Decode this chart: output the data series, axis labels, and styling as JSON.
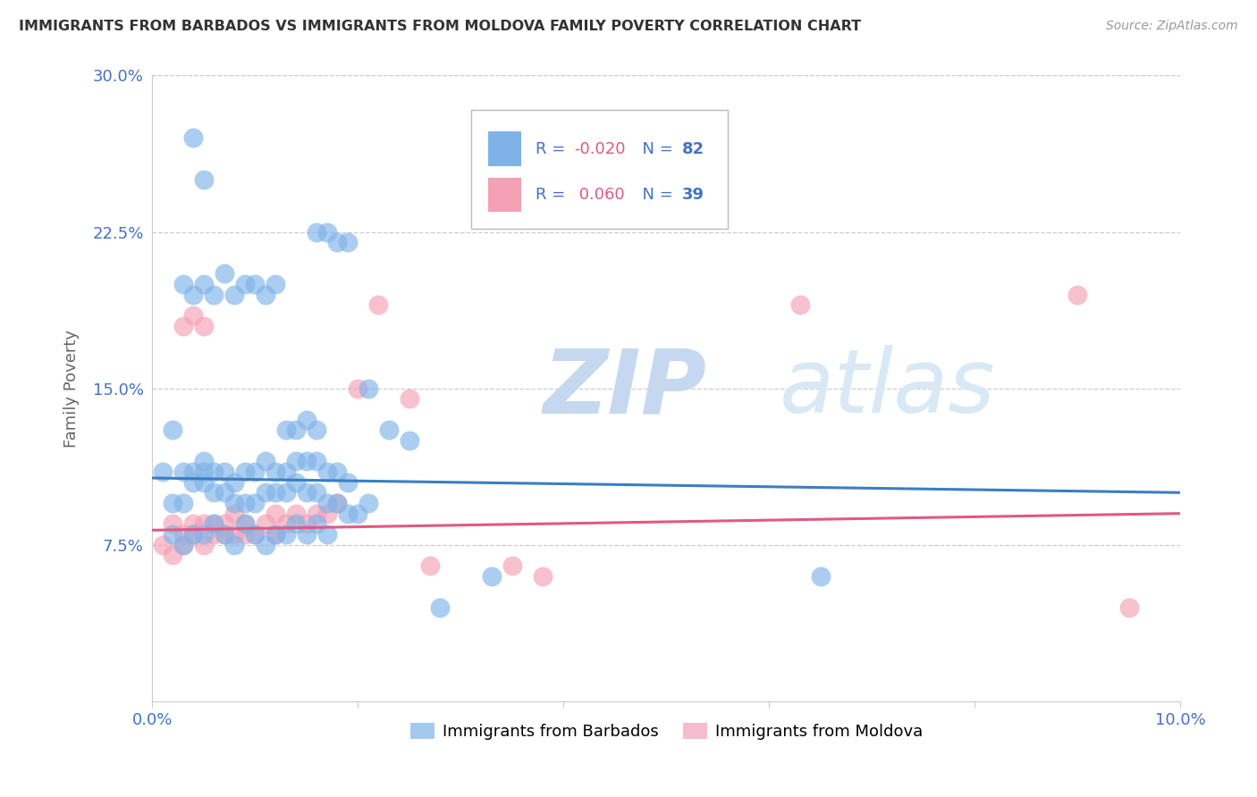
{
  "title": "IMMIGRANTS FROM BARBADOS VS IMMIGRANTS FROM MOLDOVA FAMILY POVERTY CORRELATION CHART",
  "source": "Source: ZipAtlas.com",
  "ylabel": "Family Poverty",
  "xlim": [
    0.0,
    0.1
  ],
  "ylim": [
    0.0,
    0.3
  ],
  "xtick_vals": [
    0.0,
    0.02,
    0.04,
    0.06,
    0.08,
    0.1
  ],
  "xticklabels": [
    "0.0%",
    "",
    "",
    "",
    "",
    "10.0%"
  ],
  "ytick_vals": [
    0.0,
    0.075,
    0.15,
    0.225,
    0.3
  ],
  "yticklabels": [
    "",
    "7.5%",
    "15.0%",
    "22.5%",
    "30.0%"
  ],
  "barbados_color": "#7fb3e8",
  "moldova_color": "#f4a0b5",
  "barbados_R": -0.02,
  "barbados_N": 82,
  "moldova_R": 0.06,
  "moldova_N": 39,
  "barbados_line_color": "#3a7fc1",
  "moldova_line_color": "#e05a82",
  "legend_label_barbados": "Immigrants from Barbados",
  "legend_label_moldova": "Immigrants from Moldova",
  "watermark_zip": "ZIP",
  "watermark_atlas": "atlas",
  "grid_color": "#cccccc",
  "barbados_line_y0": 0.107,
  "barbados_line_y1": 0.1,
  "moldova_line_y0": 0.082,
  "moldova_line_y1": 0.09,
  "barbados_x": [
    0.001,
    0.002,
    0.002,
    0.003,
    0.003,
    0.003,
    0.004,
    0.004,
    0.004,
    0.005,
    0.005,
    0.005,
    0.005,
    0.006,
    0.006,
    0.006,
    0.007,
    0.007,
    0.007,
    0.008,
    0.008,
    0.008,
    0.009,
    0.009,
    0.009,
    0.01,
    0.01,
    0.01,
    0.011,
    0.011,
    0.011,
    0.012,
    0.012,
    0.012,
    0.013,
    0.013,
    0.014,
    0.014,
    0.015,
    0.015,
    0.016,
    0.016,
    0.017,
    0.017,
    0.018,
    0.018,
    0.019,
    0.019,
    0.02,
    0.021,
    0.002,
    0.003,
    0.004,
    0.005,
    0.006,
    0.007,
    0.008,
    0.009,
    0.01,
    0.011,
    0.012,
    0.013,
    0.014,
    0.015,
    0.016,
    0.017,
    0.016,
    0.017,
    0.018,
    0.019,
    0.013,
    0.014,
    0.015,
    0.016,
    0.033,
    0.065,
    0.028,
    0.021,
    0.023,
    0.025,
    0.004,
    0.005
  ],
  "barbados_y": [
    0.11,
    0.095,
    0.13,
    0.095,
    0.11,
    0.2,
    0.105,
    0.11,
    0.195,
    0.105,
    0.11,
    0.115,
    0.2,
    0.1,
    0.11,
    0.195,
    0.1,
    0.11,
    0.205,
    0.095,
    0.105,
    0.195,
    0.095,
    0.11,
    0.2,
    0.095,
    0.11,
    0.2,
    0.1,
    0.115,
    0.195,
    0.1,
    0.11,
    0.2,
    0.1,
    0.11,
    0.105,
    0.115,
    0.1,
    0.115,
    0.1,
    0.115,
    0.095,
    0.11,
    0.095,
    0.11,
    0.09,
    0.105,
    0.09,
    0.095,
    0.08,
    0.075,
    0.08,
    0.08,
    0.085,
    0.08,
    0.075,
    0.085,
    0.08,
    0.075,
    0.08,
    0.08,
    0.085,
    0.08,
    0.085,
    0.08,
    0.225,
    0.225,
    0.22,
    0.22,
    0.13,
    0.13,
    0.135,
    0.13,
    0.06,
    0.06,
    0.045,
    0.15,
    0.13,
    0.125,
    0.27,
    0.25
  ],
  "moldova_x": [
    0.001,
    0.002,
    0.002,
    0.003,
    0.003,
    0.004,
    0.004,
    0.005,
    0.005,
    0.006,
    0.006,
    0.007,
    0.007,
    0.008,
    0.008,
    0.009,
    0.009,
    0.01,
    0.011,
    0.012,
    0.012,
    0.013,
    0.014,
    0.015,
    0.016,
    0.017,
    0.018,
    0.02,
    0.022,
    0.025,
    0.027,
    0.035,
    0.038,
    0.063,
    0.09,
    0.095,
    0.005,
    0.003,
    0.004
  ],
  "moldova_y": [
    0.075,
    0.07,
    0.085,
    0.075,
    0.08,
    0.08,
    0.085,
    0.075,
    0.085,
    0.08,
    0.085,
    0.08,
    0.085,
    0.08,
    0.09,
    0.08,
    0.085,
    0.08,
    0.085,
    0.08,
    0.09,
    0.085,
    0.09,
    0.085,
    0.09,
    0.09,
    0.095,
    0.15,
    0.19,
    0.145,
    0.065,
    0.065,
    0.06,
    0.19,
    0.195,
    0.045,
    0.18,
    0.18,
    0.185
  ]
}
